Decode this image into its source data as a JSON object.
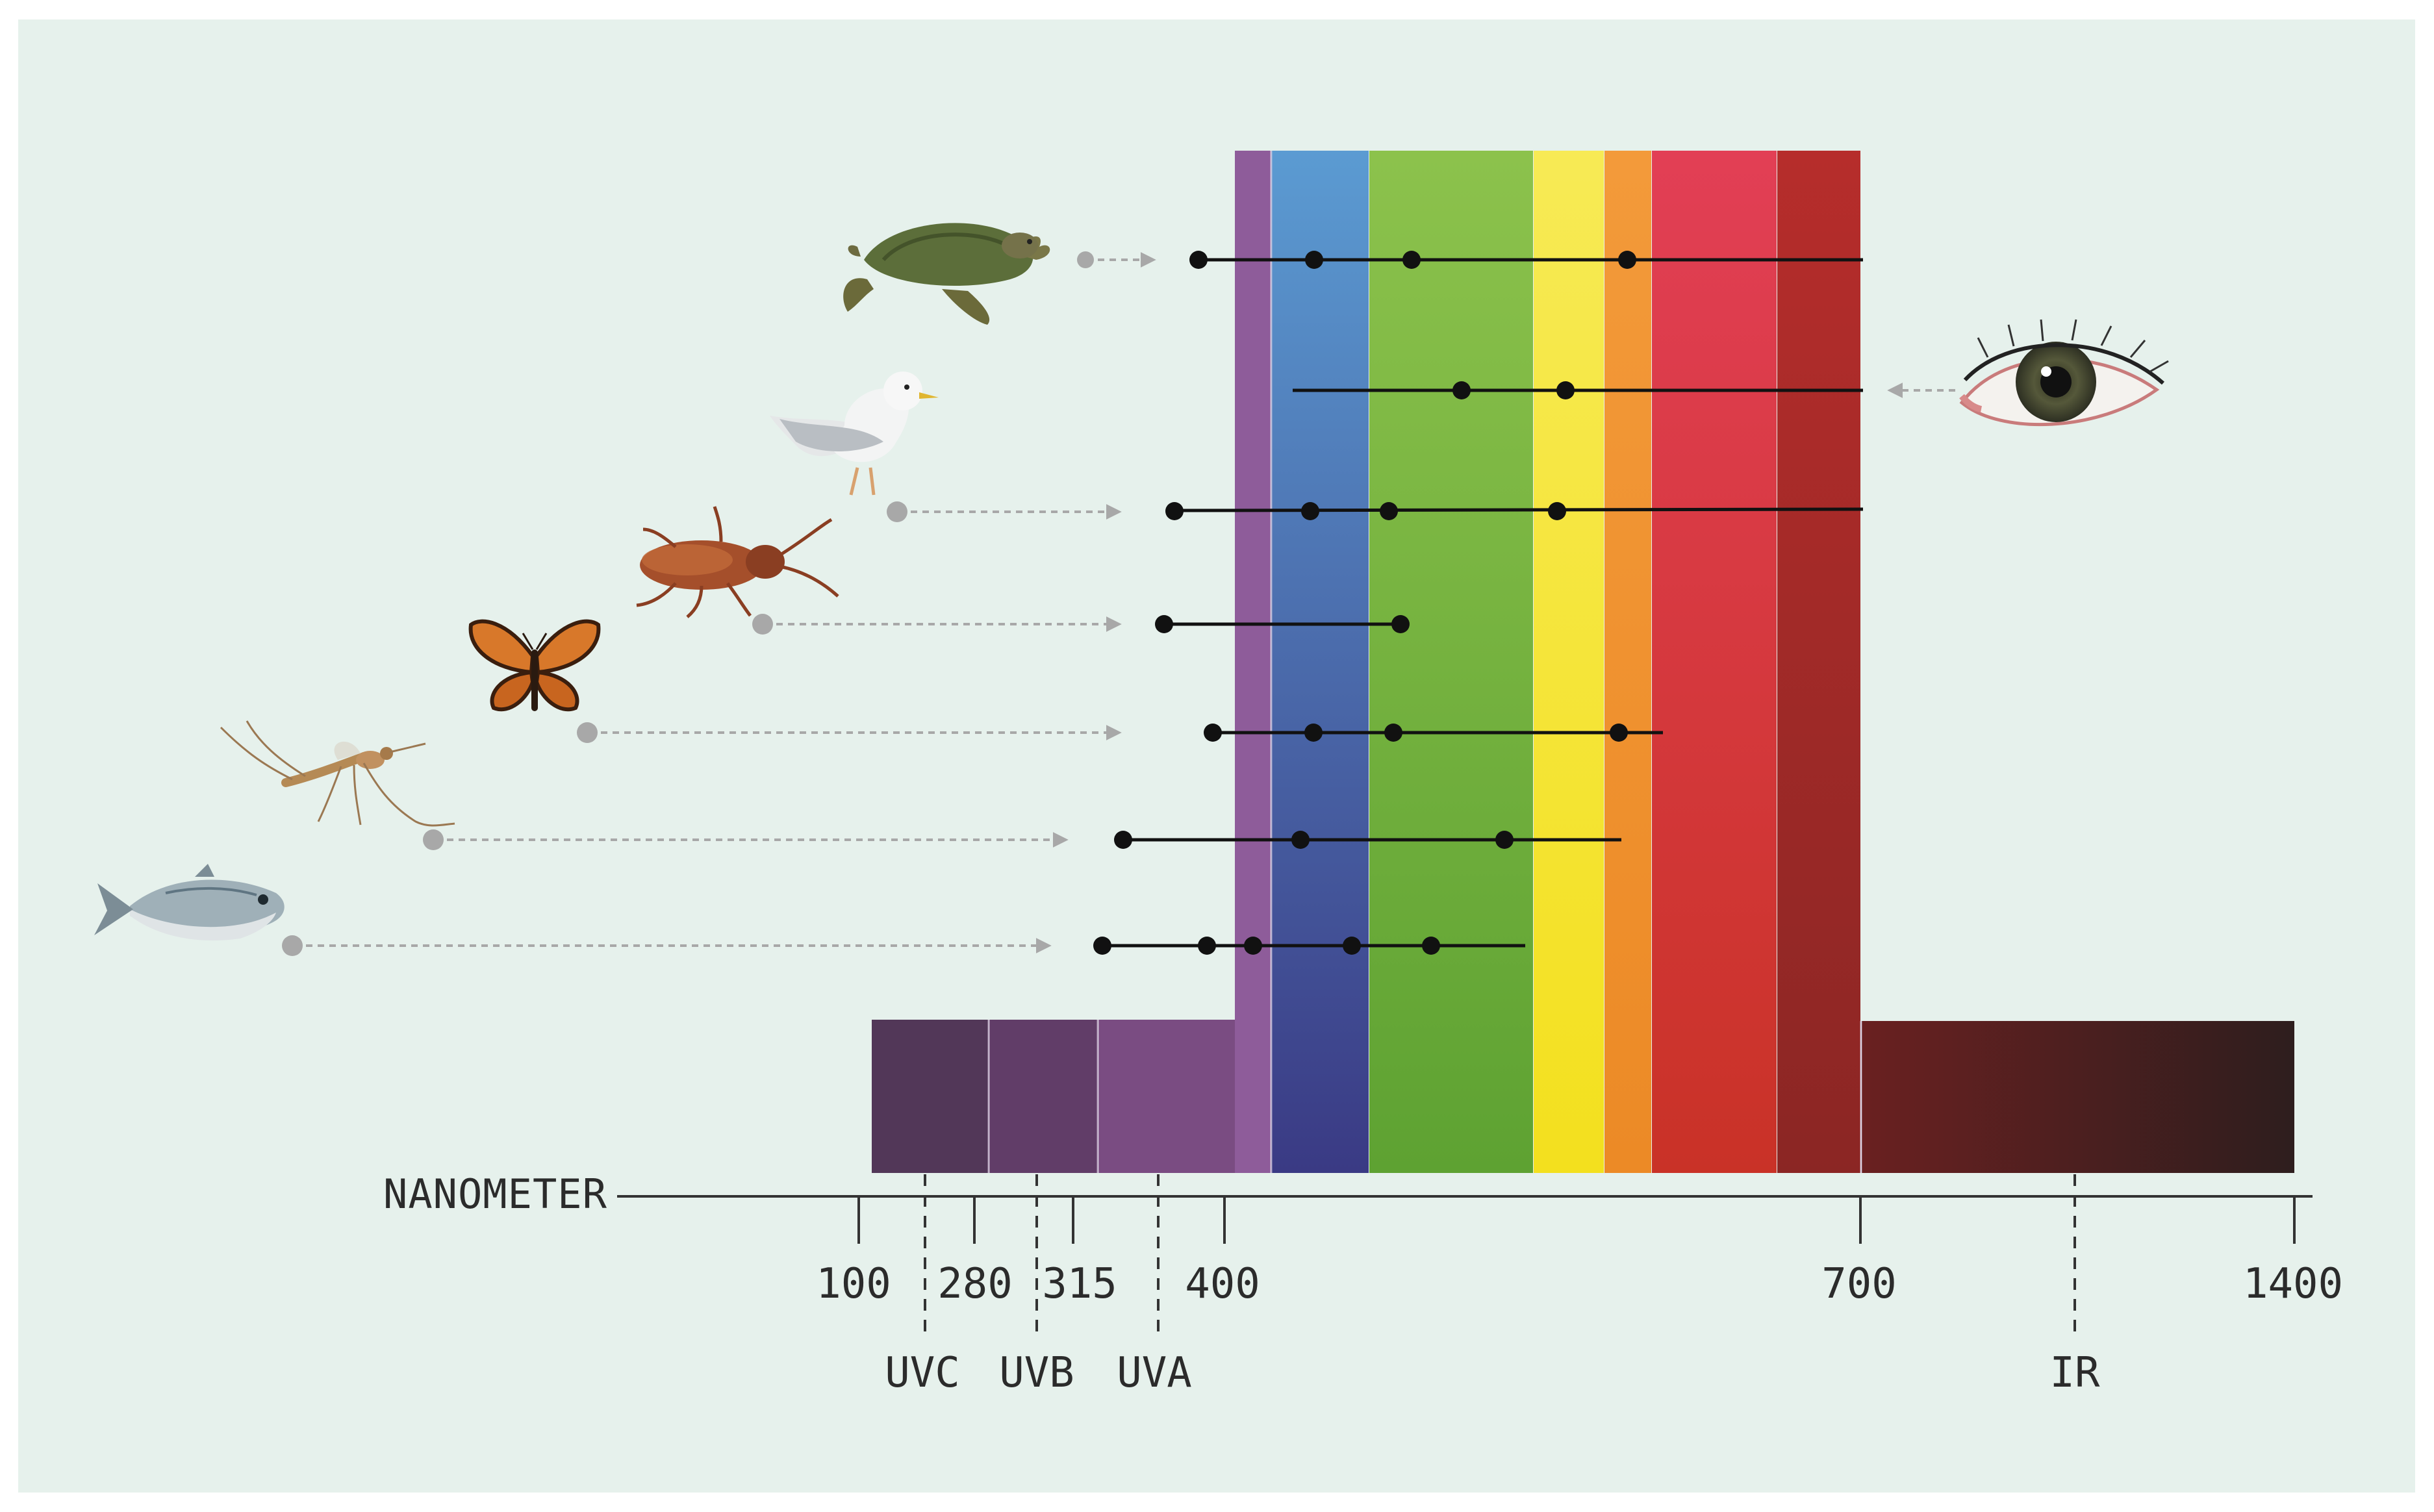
{
  "axis": {
    "title": "NANOMETER",
    "ticks": [
      {
        "value": 100,
        "label": "100"
      },
      {
        "value": 280,
        "label": "280"
      },
      {
        "value": 315,
        "label": "315"
      },
      {
        "value": 400,
        "label": "400"
      },
      {
        "value": 700,
        "label": "700"
      },
      {
        "value": 1400,
        "label": "1400"
      }
    ],
    "bands": [
      {
        "key": "uvc",
        "label": "UVC"
      },
      {
        "key": "uvb",
        "label": "UVB"
      },
      {
        "key": "uva",
        "label": "UVA"
      },
      {
        "key": "ir",
        "label": "IR"
      }
    ]
  },
  "spectrum": {
    "colors": {
      "uvc": "#523758",
      "uvb": "#613d68",
      "uva": "#7a4c82",
      "violet": "#8e5c9a",
      "blue_top": "#5b9bd2",
      "blue_bottom": "#3a3a84",
      "green_top": "#8cc24c",
      "green_bottom": "#5ea232",
      "yellow_top": "#f7ea55",
      "yellow_bottom": "#f3e01e",
      "orange_top": "#f39a3a",
      "orange_bottom": "#ec8a26",
      "red_top": "#e23f55",
      "red_bottom": "#c93227",
      "deep_red_top": "#b62d2b",
      "deep_red_bottom": "#8b2624",
      "ir_left": "#6a2020",
      "ir_right": "#2e1e1e"
    }
  },
  "species": [
    {
      "key": "turtle",
      "name": "turtle-icon",
      "points": 4
    },
    {
      "key": "human",
      "name": "eye-icon",
      "points": 2
    },
    {
      "key": "gull",
      "name": "gull-icon",
      "points": 4
    },
    {
      "key": "cockroach",
      "name": "cockroach-icon",
      "points": 2
    },
    {
      "key": "butterfly",
      "name": "butterfly-icon",
      "points": 4
    },
    {
      "key": "mosquito",
      "name": "mosquito-icon",
      "points": 3
    },
    {
      "key": "fish",
      "name": "fish-icon",
      "points": 5
    }
  ],
  "colors": {
    "background": "#e6f1ec",
    "frame": "#ffffff",
    "marker": "#111111",
    "connector": "#a8a8a8"
  }
}
